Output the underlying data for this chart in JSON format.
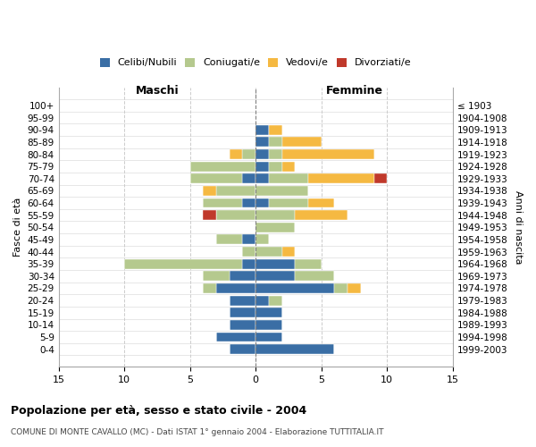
{
  "age_groups": [
    "0-4",
    "5-9",
    "10-14",
    "15-19",
    "20-24",
    "25-29",
    "30-34",
    "35-39",
    "40-44",
    "45-49",
    "50-54",
    "55-59",
    "60-64",
    "65-69",
    "70-74",
    "75-79",
    "80-84",
    "85-89",
    "90-94",
    "95-99",
    "100+"
  ],
  "birth_years": [
    "1999-2003",
    "1994-1998",
    "1989-1993",
    "1984-1988",
    "1979-1983",
    "1974-1978",
    "1969-1973",
    "1964-1968",
    "1959-1963",
    "1954-1958",
    "1949-1953",
    "1944-1948",
    "1939-1943",
    "1934-1938",
    "1929-1933",
    "1924-1928",
    "1919-1923",
    "1914-1918",
    "1909-1913",
    "1904-1908",
    "≤ 1903"
  ],
  "colors": {
    "celibi": "#3a6ea5",
    "coniugati": "#b5c98e",
    "vedovi": "#f5b942",
    "divorziati": "#c0392b"
  },
  "maschi": {
    "celibi": [
      2,
      3,
      2,
      2,
      2,
      3,
      2,
      1,
      0,
      1,
      0,
      0,
      1,
      0,
      1,
      0,
      0,
      0,
      0,
      0,
      0
    ],
    "coniugati": [
      0,
      0,
      0,
      0,
      0,
      1,
      2,
      9,
      1,
      2,
      0,
      3,
      3,
      3,
      4,
      5,
      1,
      0,
      0,
      0,
      0
    ],
    "vedovi": [
      0,
      0,
      0,
      0,
      0,
      0,
      0,
      0,
      0,
      0,
      0,
      0,
      0,
      1,
      0,
      0,
      1,
      0,
      0,
      0,
      0
    ],
    "divorziati": [
      0,
      0,
      0,
      0,
      0,
      0,
      0,
      0,
      0,
      0,
      0,
      1,
      0,
      0,
      0,
      0,
      0,
      0,
      0,
      0,
      0
    ]
  },
  "femmine": {
    "celibi": [
      6,
      2,
      2,
      2,
      1,
      6,
      3,
      3,
      0,
      0,
      0,
      0,
      1,
      0,
      1,
      1,
      1,
      1,
      1,
      0,
      0
    ],
    "coniugati": [
      0,
      0,
      0,
      0,
      1,
      1,
      3,
      2,
      2,
      1,
      3,
      3,
      3,
      4,
      3,
      1,
      1,
      1,
      0,
      0,
      0
    ],
    "vedovi": [
      0,
      0,
      0,
      0,
      0,
      1,
      0,
      0,
      1,
      0,
      0,
      4,
      2,
      0,
      5,
      1,
      7,
      3,
      1,
      0,
      0
    ],
    "divorziati": [
      0,
      0,
      0,
      0,
      0,
      0,
      0,
      0,
      0,
      0,
      0,
      0,
      0,
      0,
      1,
      0,
      0,
      0,
      0,
      0,
      0
    ]
  },
  "xlim": 15,
  "title": "Popolazione per età, sesso e stato civile - 2004",
  "subtitle": "COMUNE DI MONTE CAVALLO (MC) - Dati ISTAT 1° gennaio 2004 - Elaborazione TUTTITALIA.IT",
  "ylabel_left": "Fasce di età",
  "ylabel_right": "Anni di nascita",
  "xlabel_left": "Maschi",
  "xlabel_right": "Femmine",
  "legend_labels": [
    "Celibi/Nubili",
    "Coniugati/e",
    "Vedovi/e",
    "Divorziati/e"
  ]
}
